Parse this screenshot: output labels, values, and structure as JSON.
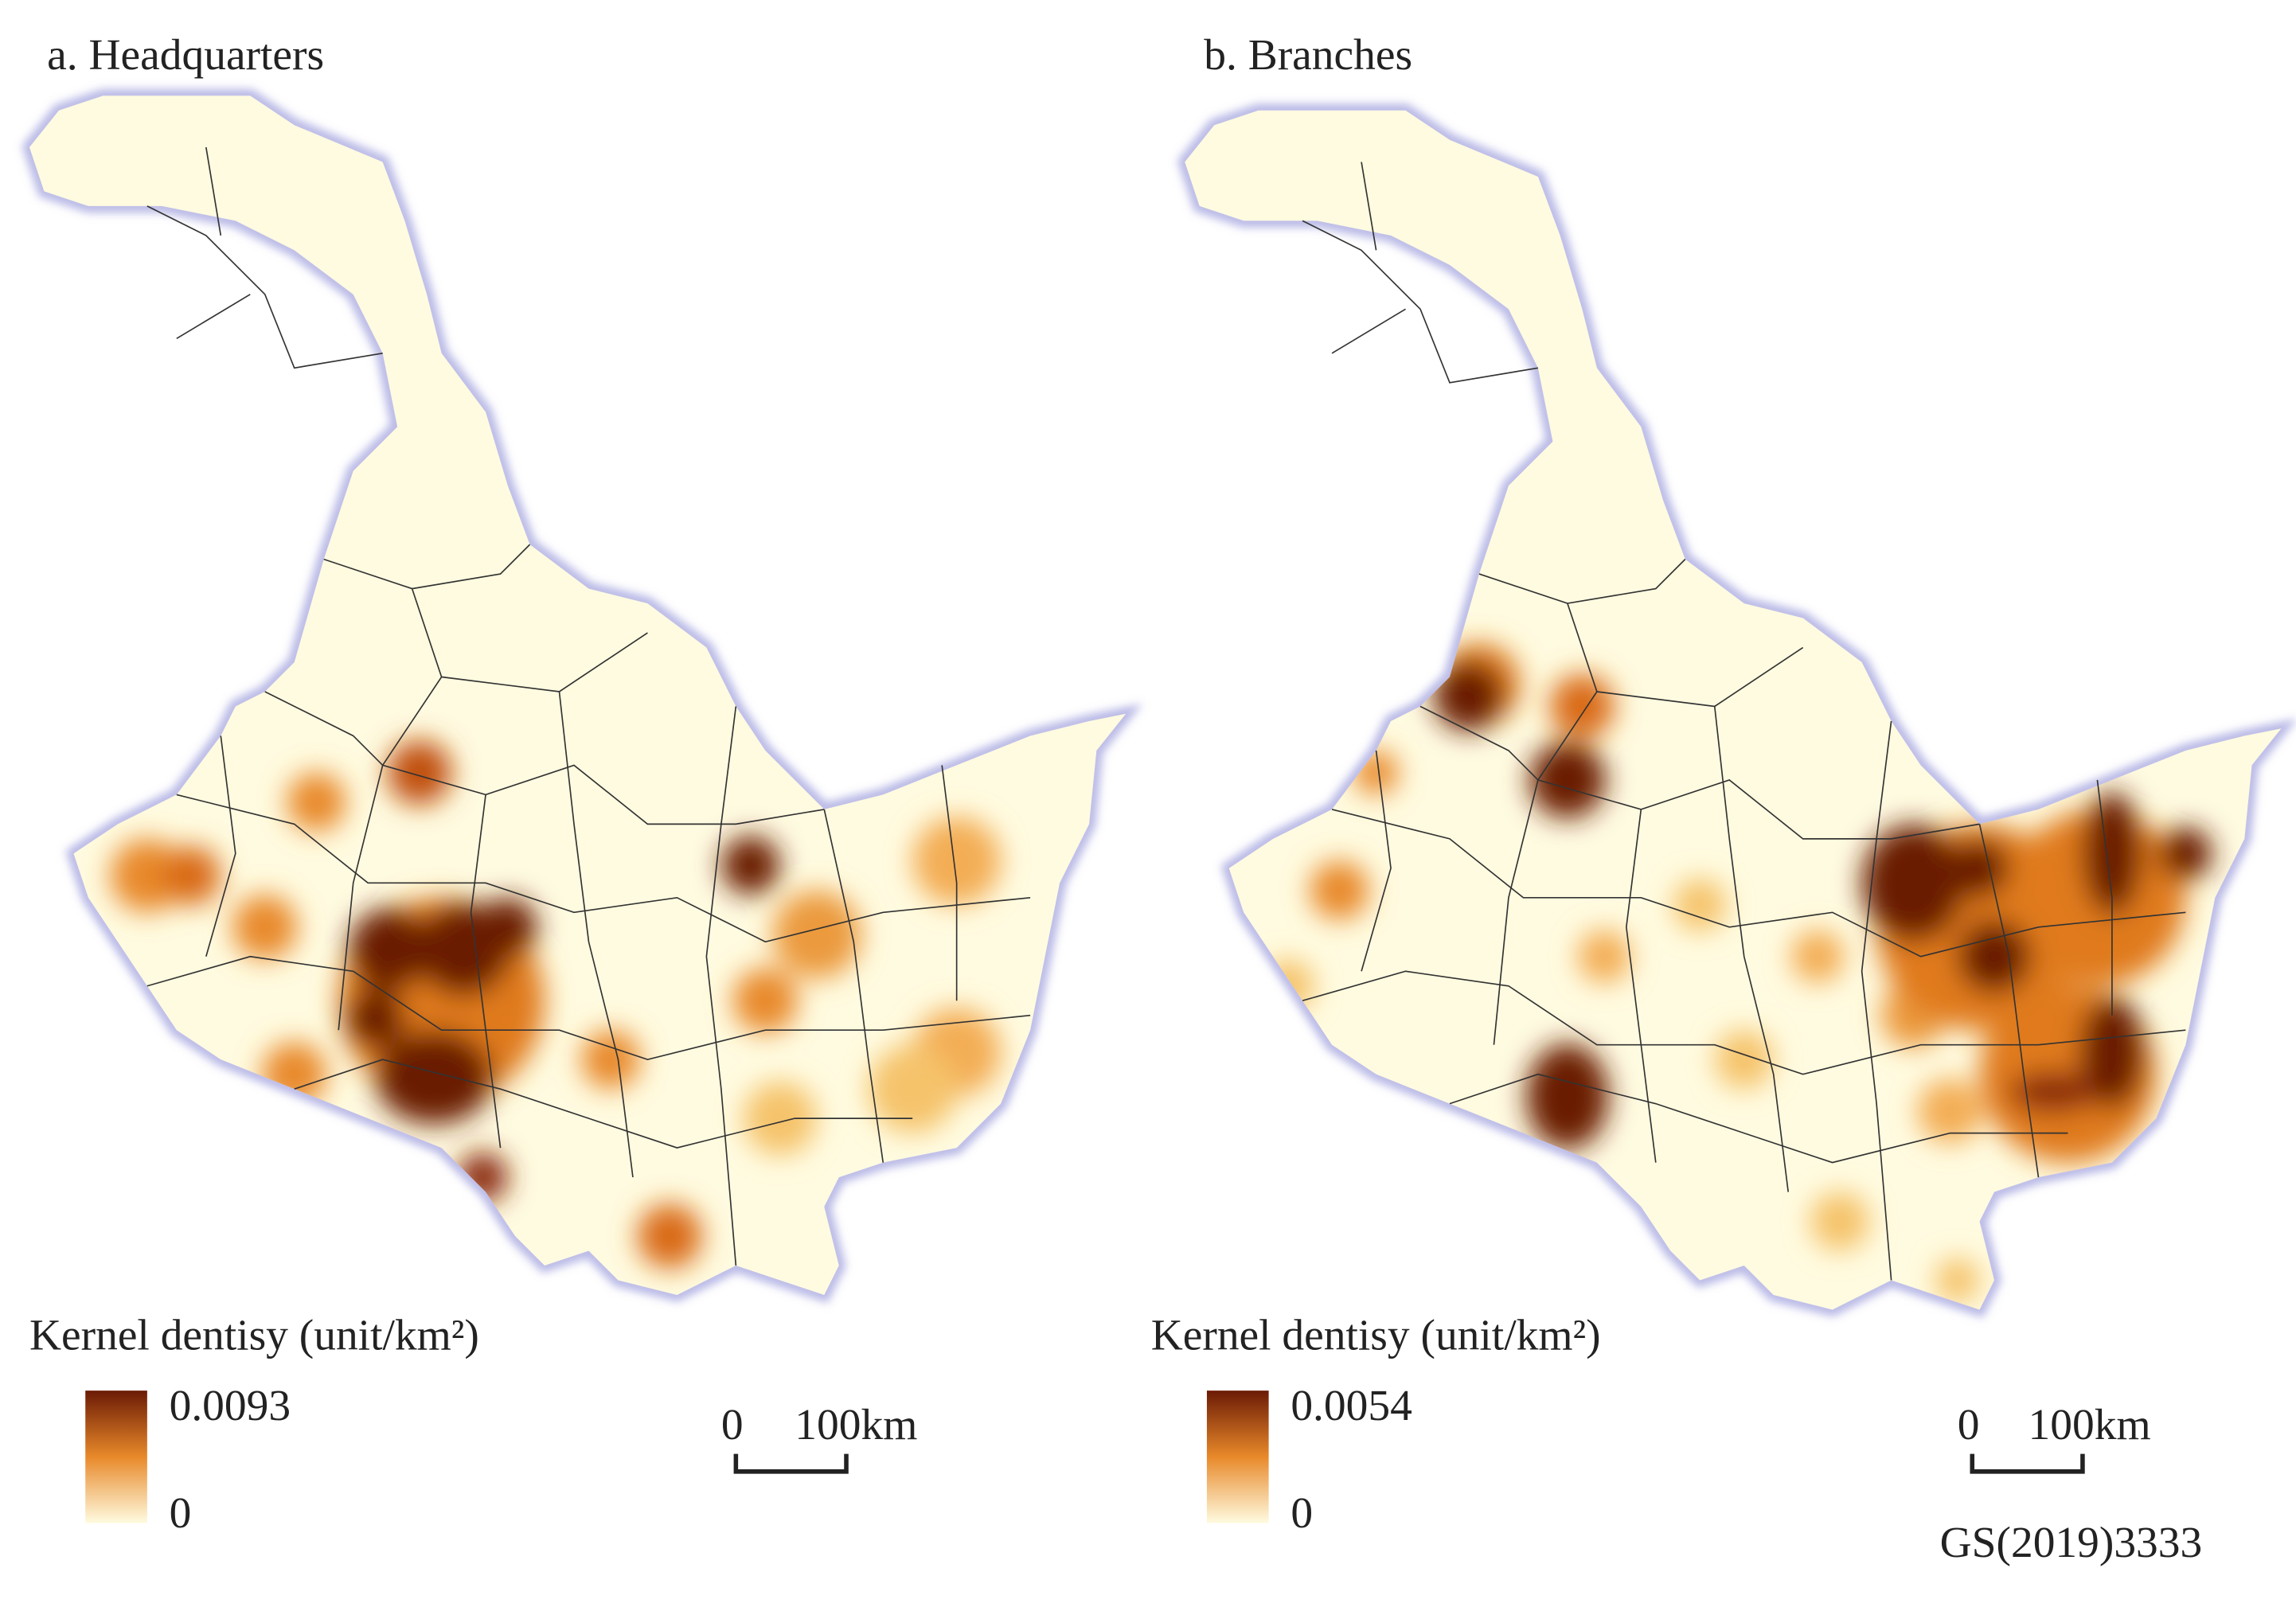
{
  "maps": [
    {
      "title": "a. Headquarters",
      "legend": {
        "title": "Kernel dentisy (unit/km²)",
        "max": "0.0093",
        "min": "0"
      },
      "scale_bar": {
        "start": "0",
        "end": "100km"
      }
    },
    {
      "title": "b. Branches",
      "legend": {
        "title": "Kernel dentisy (unit/km²)",
        "max": "0.0054",
        "min": "0"
      },
      "scale_bar": {
        "start": "0",
        "end": "100km"
      }
    }
  ],
  "map_code": "GS(2019)3333"
}
